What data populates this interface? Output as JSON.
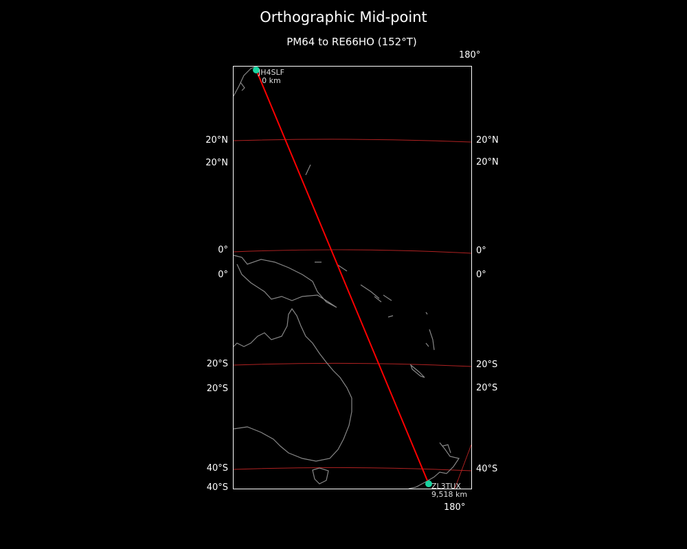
{
  "title": "Orthographic Mid-point",
  "subtitle": "PM64 to RE66HO (152°T)",
  "labels": {
    "lon_top": "180°",
    "lon_bottom": "180°",
    "lat_left": [
      "20°N",
      "20°N",
      "0°",
      "0°",
      "20°S",
      "20°S",
      "40°S",
      "40°S"
    ],
    "lat_right": [
      "20°N",
      "20°N",
      "0°",
      "0°",
      "20°S",
      "20°S",
      "40°S"
    ]
  },
  "stations": [
    {
      "call": "JH4SLF",
      "distance": "0 km"
    },
    {
      "call": "ZL3TUX",
      "distance": "9,518 km"
    }
  ],
  "colors": {
    "background": "#000000",
    "path": "#ff0000",
    "graticule": "#b22222",
    "coast": "#888888",
    "marker": "#19d3a0",
    "frame": "#ffffff"
  },
  "projection": "orthographic"
}
